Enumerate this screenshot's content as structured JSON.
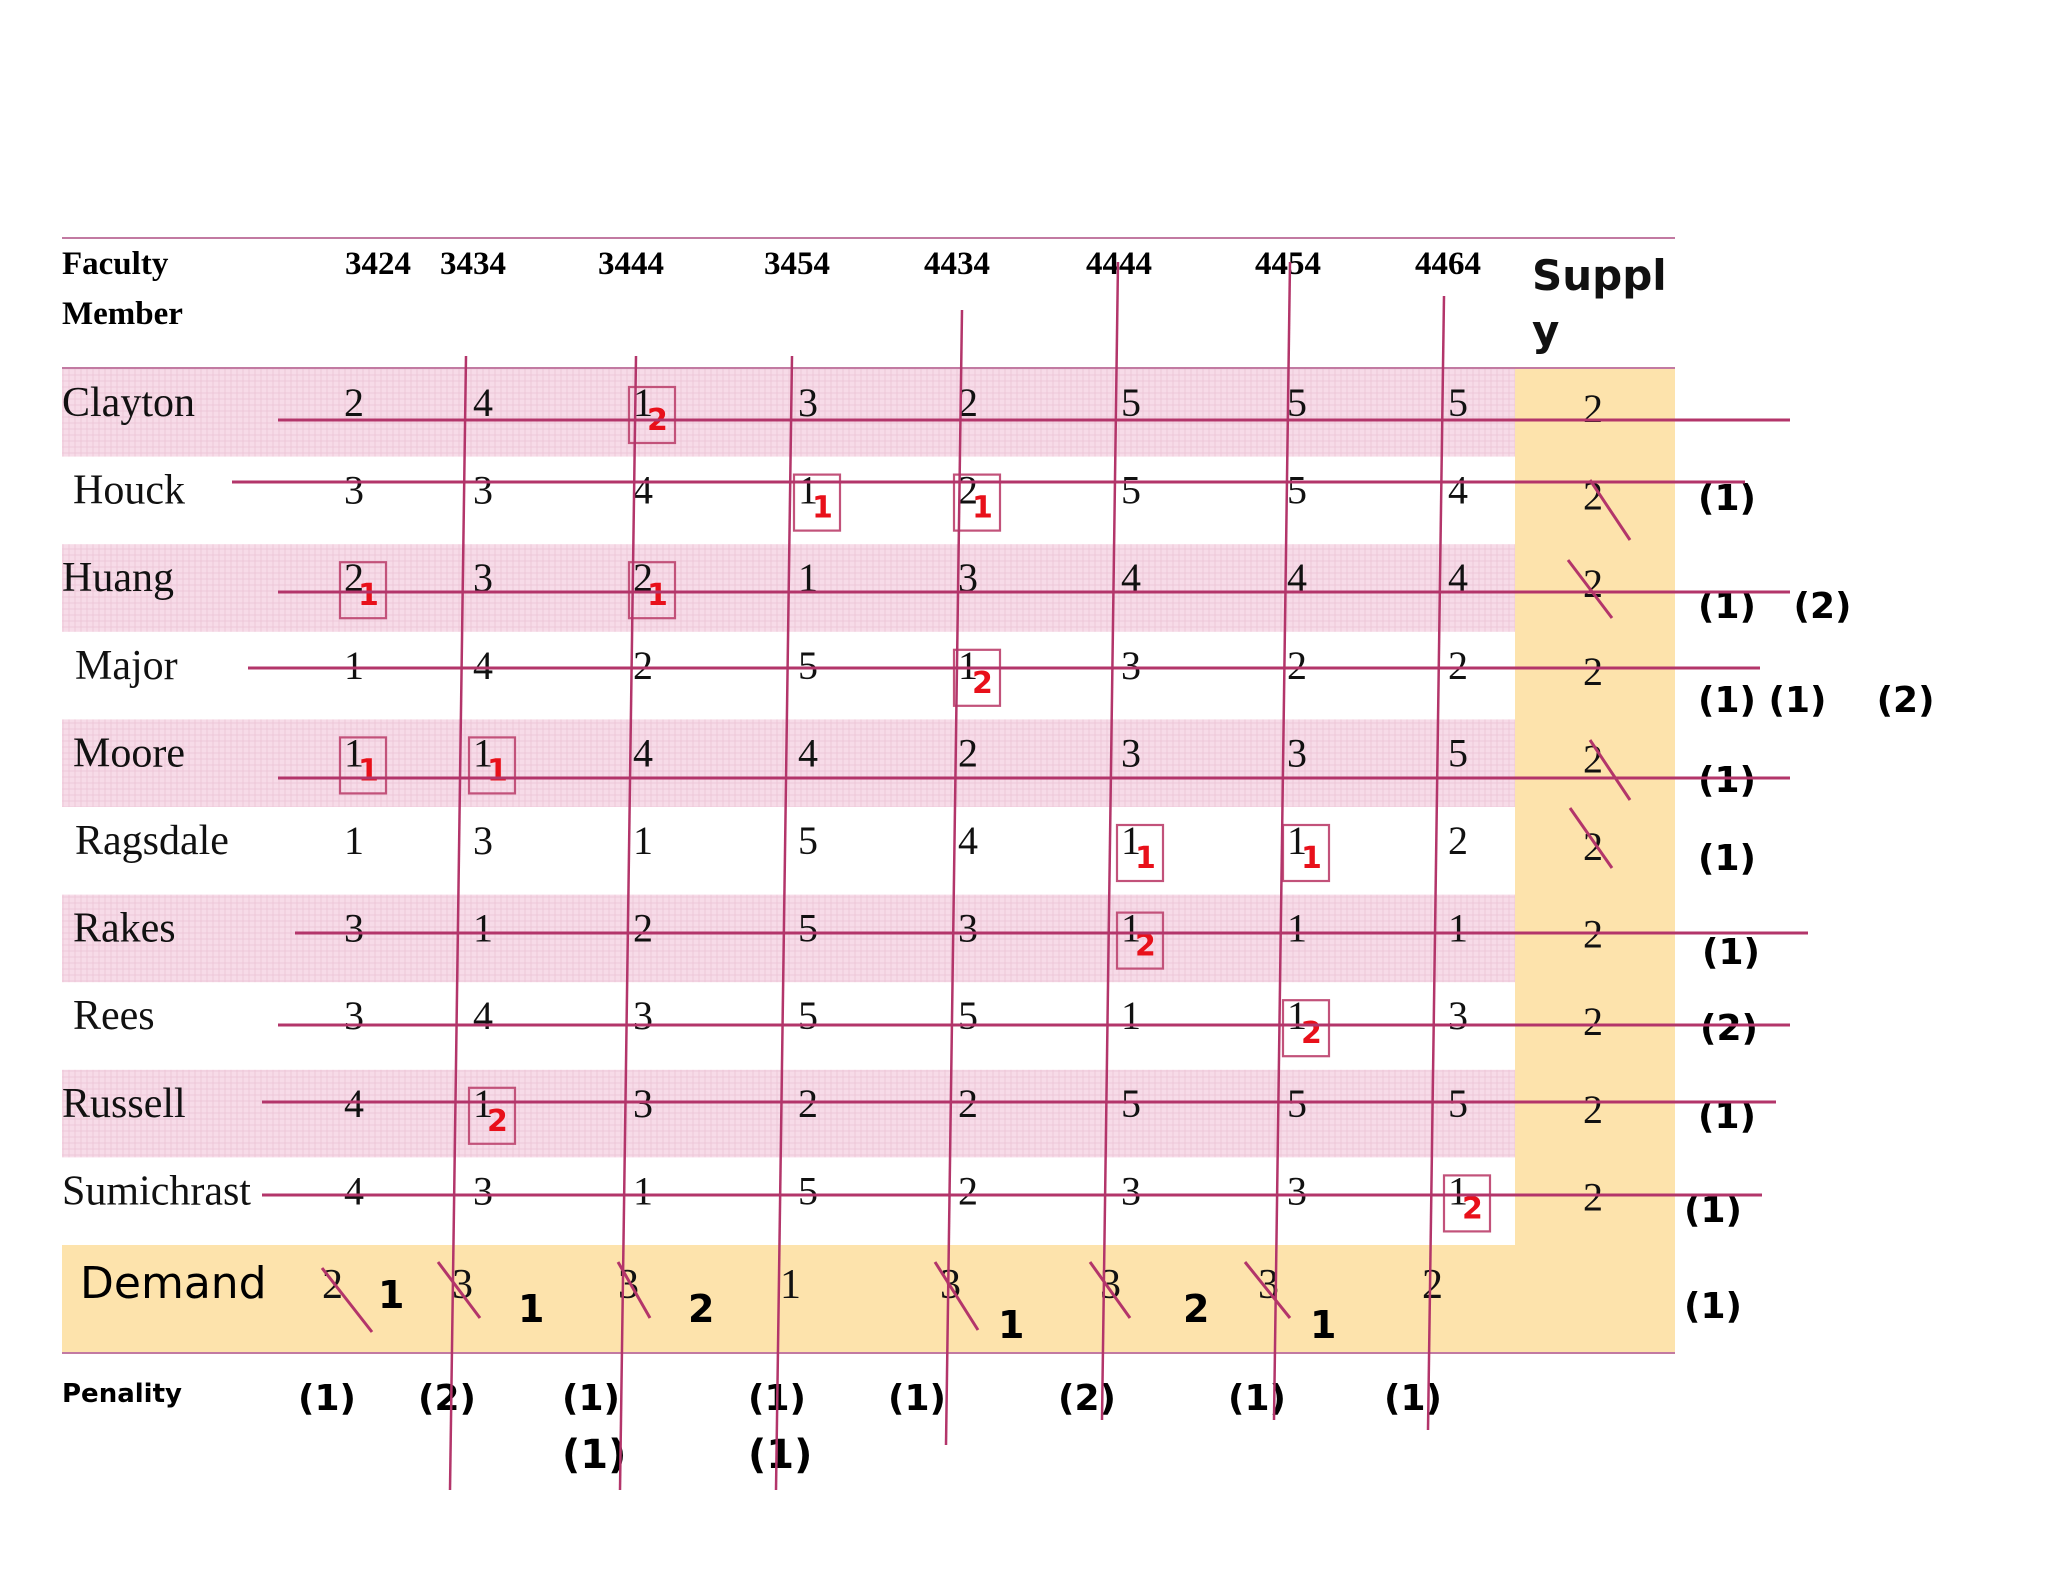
{
  "table": {
    "header": {
      "faculty_line1": "Faculty",
      "faculty_line2": "Member",
      "courses": [
        "3424",
        "3434",
        "3444",
        "3454",
        "4434",
        "4444",
        "4454",
        "4464"
      ],
      "supply_line1": "Suppl",
      "supply_line2": "y"
    },
    "rows": [
      {
        "name": "Clayton",
        "costs": [
          "2",
          "4",
          "1",
          "3",
          "2",
          "5",
          "5",
          "5"
        ],
        "supply": "2"
      },
      {
        "name": "Houck",
        "costs": [
          "3",
          "3",
          "4",
          "1",
          "2",
          "5",
          "5",
          "4"
        ],
        "supply": "2"
      },
      {
        "name": "Huang",
        "costs": [
          "2",
          "3",
          "2",
          "1",
          "3",
          "4",
          "4",
          "4"
        ],
        "supply": "2"
      },
      {
        "name": "Major",
        "costs": [
          "1",
          "4",
          "2",
          "5",
          "1",
          "3",
          "2",
          "2"
        ],
        "supply": "2"
      },
      {
        "name": "Moore",
        "costs": [
          "1",
          "1",
          "4",
          "4",
          "2",
          "3",
          "3",
          "5"
        ],
        "supply": "2"
      },
      {
        "name": "Ragsdale",
        "costs": [
          "1",
          "3",
          "1",
          "5",
          "4",
          "1",
          "1",
          "2"
        ],
        "supply": "2"
      },
      {
        "name": "Rakes",
        "costs": [
          "3",
          "1",
          "2",
          "5",
          "3",
          "1",
          "1",
          "1"
        ],
        "supply": "2"
      },
      {
        "name": "Rees",
        "costs": [
          "3",
          "4",
          "3",
          "5",
          "5",
          "1",
          "1",
          "3"
        ],
        "supply": "2"
      },
      {
        "name": "Russell",
        "costs": [
          "4",
          "1",
          "3",
          "2",
          "2",
          "5",
          "5",
          "5"
        ],
        "supply": "2"
      },
      {
        "name": "Sumichrast",
        "costs": [
          "4",
          "3",
          "1",
          "5",
          "2",
          "3",
          "3",
          "1"
        ],
        "supply": "2"
      }
    ],
    "demand_label": "Demand",
    "demand": [
      "2",
      "3",
      "3",
      "1",
      "3",
      "3",
      "3",
      "2"
    ],
    "demand_remaining": [
      "1",
      "1",
      "2",
      "",
      "1",
      "2",
      "1",
      ""
    ],
    "penalty_label": "Penality",
    "col_penalties_row1": [
      "(1)",
      "(2)",
      "(1)",
      "(1)",
      "(1)",
      "(2)",
      "(1)",
      "(1)"
    ],
    "col_penalties_row2": [
      "(1)",
      "(1)"
    ],
    "row_penalties": [
      "",
      "(1)",
      "(1)   (2)",
      "(1) (1)    (2)",
      "(1)",
      "(1)",
      "(1)",
      "(2)",
      "(1)",
      "(1)"
    ],
    "demand_row_penalty": "(1)",
    "allocations": [
      {
        "row": 0,
        "col": 2,
        "amount": "2"
      },
      {
        "row": 1,
        "col": 3,
        "amount": "1"
      },
      {
        "row": 1,
        "col": 4,
        "amount": "1"
      },
      {
        "row": 2,
        "col": 0,
        "amount": "1"
      },
      {
        "row": 2,
        "col": 2,
        "amount": "1"
      },
      {
        "row": 3,
        "col": 4,
        "amount": "2"
      },
      {
        "row": 4,
        "col": 0,
        "amount": "1"
      },
      {
        "row": 4,
        "col": 1,
        "amount": "1"
      },
      {
        "row": 5,
        "col": 5,
        "amount": "1"
      },
      {
        "row": 5,
        "col": 6,
        "amount": "1"
      },
      {
        "row": 6,
        "col": 5,
        "amount": "2"
      },
      {
        "row": 7,
        "col": 6,
        "amount": "2"
      },
      {
        "row": 8,
        "col": 1,
        "amount": "2"
      },
      {
        "row": 9,
        "col": 7,
        "amount": "2"
      }
    ]
  },
  "colors": {
    "row_band": "#f6dbe8",
    "orange": "#fde3ac",
    "rule": "#c27aa2",
    "strike": "#b3356a",
    "alloc": "#e8101a",
    "box": "#c2527a"
  }
}
